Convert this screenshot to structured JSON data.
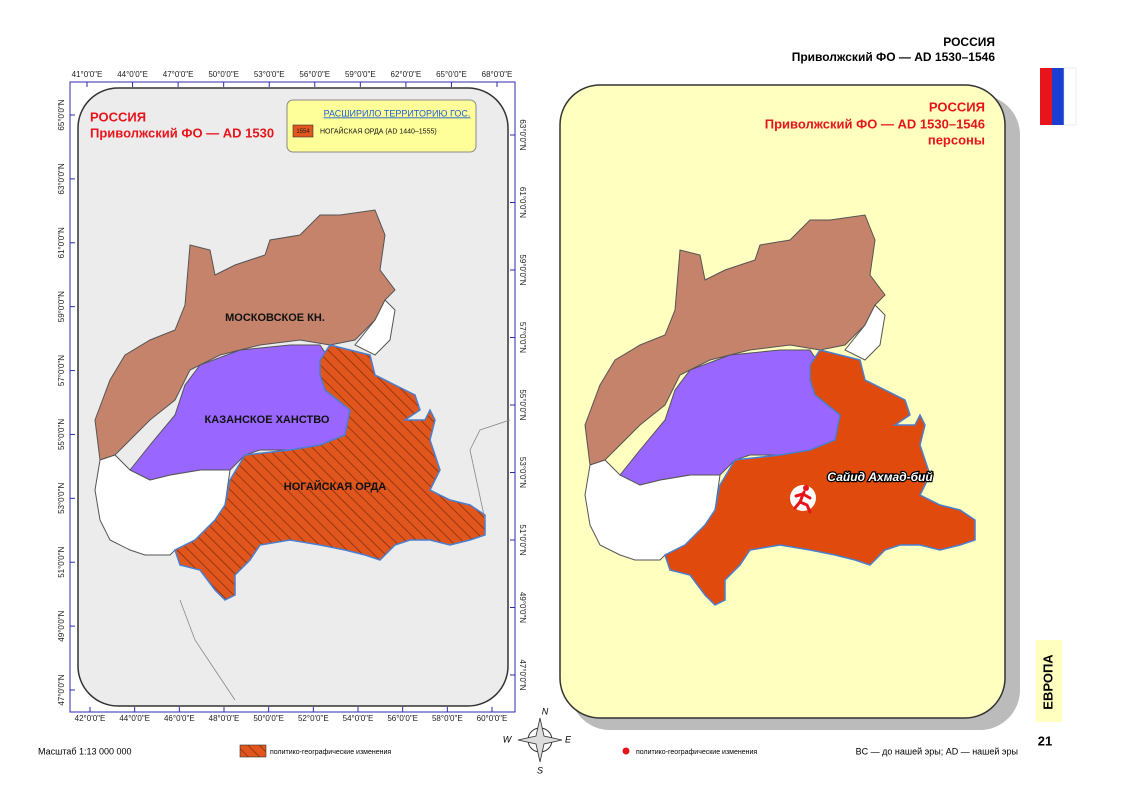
{
  "header": {
    "title": "РОССИЯ",
    "subtitle": "Приволжский ФО — AD 1530–1546"
  },
  "left_map": {
    "title": "РОССИЯ",
    "subtitle": "Приволжский ФО — AD 1530",
    "legend": {
      "heading": "РАСШИРИЛО ТЕРРИТОРИЮ ГОС.",
      "swatch_label": "1554",
      "item": "НОГАЙСКАЯ ОРДА (AD 1440–1555)"
    },
    "regions": [
      "МОСКОВСКОЕ КН.",
      "КАЗАНСКОЕ ХАНСТВО",
      "НОГАЙСКАЯ ОРДА"
    ],
    "top_ticks": [
      "41°0'0\"E",
      "44°0'0\"E",
      "47°0'0\"E",
      "50°0'0\"E",
      "53°0'0\"E",
      "56°0'0\"E",
      "59°0'0\"E",
      "62°0'0\"E",
      "65°0'0\"E",
      "68°0'0\"E"
    ],
    "bottom_ticks": [
      "42°0'0\"E",
      "44°0'0\"E",
      "46°0'0\"E",
      "48°0'0\"E",
      "50°0'0\"E",
      "52°0'0\"E",
      "54°0'0\"E",
      "56°0'0\"E",
      "58°0'0\"E",
      "60°0'0\"E"
    ],
    "left_ticks": [
      "65°0'0\"N",
      "63°0'0\"N",
      "61°0'0\"N",
      "59°0'0\"N",
      "57°0'0\"N",
      "55°0'0\"N",
      "53°0'0\"N",
      "51°0'0\"N",
      "49°0'0\"N",
      "47°0'0\"N"
    ],
    "right_ticks": [
      "63°0'0\"N",
      "61°0'0\"N",
      "59°0'0\"N",
      "57°0'0\"N",
      "55°0'0\"N",
      "53°0'0\"N",
      "51°0'0\"N",
      "49°0'0\"N",
      "47°0'0\"N"
    ]
  },
  "right_map": {
    "title": "РОССИЯ",
    "subtitle": "Приволжский ФО — AD 1530–1546",
    "note": "персоны",
    "person": "Сайид Ахмад-бий"
  },
  "compass": [
    "N",
    "W",
    "E",
    "S"
  ],
  "footer": {
    "scale": "Масштаб 1:13 000 000",
    "legend_hatch": "политико-географические изменения",
    "legend_dot": "политико-географические изменения",
    "era_note": "BC — до нашей эры; AD — нашей эры",
    "section": "ЕВРОПА",
    "page": "21"
  }
}
